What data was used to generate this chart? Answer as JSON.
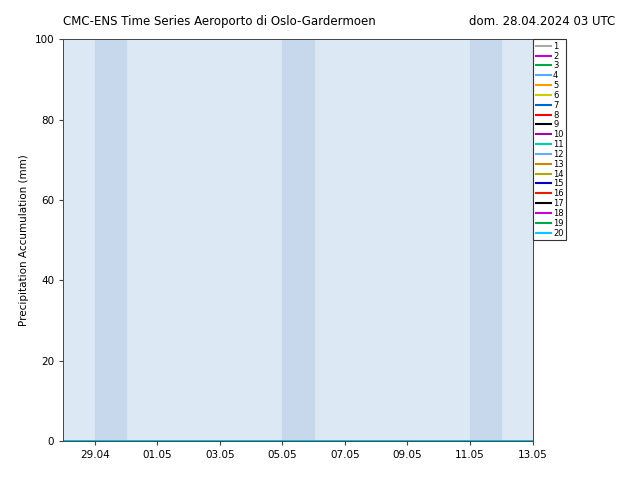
{
  "title_left": "CMC-ENS Time Series Aeroporto di Oslo-Gardermoen",
  "title_right": "dom. 28.04.2024 03 UTC",
  "ylabel": "Precipitation Accumulation (mm)",
  "ylim": [
    0,
    100
  ],
  "yticks": [
    0,
    20,
    40,
    60,
    80,
    100
  ],
  "background_color": "#ffffff",
  "plot_bg_color": "#dce9f5",
  "shaded_bands": [
    {
      "x_start_day": 1,
      "x_end_day": 2
    },
    {
      "x_start_day": 7,
      "x_end_day": 8
    },
    {
      "x_start_day": 13,
      "x_end_day": 14
    }
  ],
  "shaded_color": "#c8d8ec",
  "total_days": 15,
  "xtick_dates": [
    "29.04",
    "01.05",
    "03.05",
    "05.05",
    "07.05",
    "09.05",
    "11.05",
    "13.05"
  ],
  "xtick_offsets_days": [
    1,
    3,
    5,
    7,
    9,
    11,
    13,
    15
  ],
  "member_colors": [
    "#aaaaaa",
    "#cc00cc",
    "#00aa44",
    "#55aaff",
    "#ff9900",
    "#cccc00",
    "#0066cc",
    "#ff0000",
    "#000000",
    "#aa00aa",
    "#00ccaa",
    "#66aaff",
    "#cc8800",
    "#aaaa00",
    "#0000cc",
    "#dd2200",
    "#000000",
    "#cc00cc",
    "#00aa44",
    "#00ccff"
  ],
  "member_labels": [
    "1",
    "2",
    "3",
    "4",
    "5",
    "6",
    "7",
    "8",
    "9",
    "10",
    "11",
    "12",
    "13",
    "14",
    "15",
    "16",
    "17",
    "18",
    "19",
    "20"
  ],
  "num_members": 20,
  "line_width": 1.2
}
